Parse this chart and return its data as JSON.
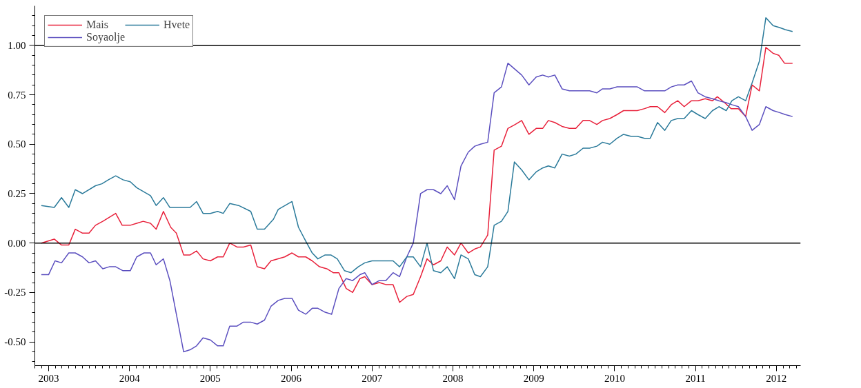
{
  "chart_data": {
    "type": "line",
    "xlim": [
      2002.83,
      2012.3
    ],
    "ylim": [
      -0.62,
      1.2
    ],
    "xticks": [
      2003,
      2004,
      2005,
      2006,
      2007,
      2008,
      2009,
      2010,
      2011,
      2012
    ],
    "yticks": [
      {
        "value": -0.5,
        "label": "-0.50"
      },
      {
        "value": -0.25,
        "label": "-0.25"
      },
      {
        "value": 0,
        "label": "0.00"
      },
      {
        "value": 0.25,
        "label": "0.25"
      },
      {
        "value": 0.5,
        "label": "0.50"
      },
      {
        "value": 0.75,
        "label": "0.75"
      },
      {
        "value": 1,
        "label": "1.00"
      }
    ],
    "grid": false,
    "legend": "top left",
    "line_style": "solid",
    "marker": "none",
    "ref_lines": [
      {
        "axis": "y",
        "value": 1.0,
        "color": "#000000"
      },
      {
        "axis": "y",
        "value": 0,
        "color": "#000000"
      }
    ],
    "series": [
      {
        "name": "Mais",
        "color": "#e8203a",
        "x": [
          2002.91,
          2003.07,
          2003.16,
          2003.25,
          2003.33,
          2003.42,
          2003.5,
          2003.58,
          2003.67,
          2003.75,
          2003.83,
          2003.91,
          2004.01,
          2004.09,
          2004.17,
          2004.26,
          2004.33,
          2004.42,
          2004.51,
          2004.58,
          2004.67,
          2004.75,
          2004.83,
          2004.91,
          2005.0,
          2005.09,
          2005.16,
          2005.24,
          2005.33,
          2005.41,
          2005.5,
          2005.58,
          2005.67,
          2005.75,
          2005.92,
          2006.01,
          2006.09,
          2006.18,
          2006.26,
          2006.35,
          2006.44,
          2006.52,
          2006.59,
          2006.68,
          2006.76,
          2006.85,
          2006.91,
          2007.0,
          2007.09,
          2007.17,
          2007.26,
          2007.34,
          2007.43,
          2007.51,
          2007.6,
          2007.68,
          2007.76,
          2007.85,
          2007.93,
          2008.02,
          2008.1,
          2008.19,
          2008.27,
          2008.34,
          2008.43,
          2008.51,
          2008.6,
          2008.68,
          2008.77,
          2008.85,
          2008.94,
          2009.03,
          2009.11,
          2009.18,
          2009.26,
          2009.35,
          2009.44,
          2009.52,
          2009.61,
          2009.69,
          2009.78,
          2009.85,
          2009.94,
          2010.03,
          2010.11,
          2010.2,
          2010.28,
          2010.37,
          2010.44,
          2010.53,
          2010.62,
          2010.7,
          2010.78,
          2010.86,
          2010.95,
          2011.03,
          2011.12,
          2011.21,
          2011.27,
          2011.36,
          2011.44,
          2011.53,
          2011.62,
          2011.7,
          2011.79,
          2011.87,
          2011.96,
          2012.03,
          2012.1,
          2012.2
        ],
        "values": [
          0.0,
          0.02,
          -0.01,
          -0.01,
          0.07,
          0.05,
          0.05,
          0.09,
          0.11,
          0.13,
          0.15,
          0.09,
          0.09,
          0.1,
          0.11,
          0.1,
          0.07,
          0.16,
          0.08,
          0.05,
          -0.06,
          -0.06,
          -0.04,
          -0.08,
          -0.09,
          -0.07,
          -0.07,
          0.0,
          -0.02,
          -0.02,
          -0.01,
          -0.12,
          -0.13,
          -0.09,
          -0.07,
          -0.05,
          -0.07,
          -0.07,
          -0.09,
          -0.12,
          -0.13,
          -0.15,
          -0.15,
          -0.23,
          -0.25,
          -0.18,
          -0.17,
          -0.21,
          -0.2,
          -0.21,
          -0.21,
          -0.3,
          -0.27,
          -0.26,
          -0.17,
          -0.08,
          -0.11,
          -0.09,
          -0.02,
          -0.06,
          0.0,
          -0.05,
          -0.03,
          -0.02,
          0.04,
          0.47,
          0.49,
          0.58,
          0.6,
          0.62,
          0.55,
          0.58,
          0.58,
          0.62,
          0.61,
          0.59,
          0.58,
          0.58,
          0.62,
          0.62,
          0.6,
          0.62,
          0.63,
          0.65,
          0.67,
          0.67,
          0.67,
          0.68,
          0.69,
          0.69,
          0.66,
          0.7,
          0.72,
          0.69,
          0.72,
          0.72,
          0.73,
          0.72,
          0.74,
          0.71,
          0.68,
          0.68,
          0.64,
          0.8,
          0.77,
          0.99,
          0.96,
          0.95,
          0.91,
          0.91
        ]
      },
      {
        "name": "Soyaolje",
        "color": "#5b4fbf",
        "x": [
          2002.91,
          2003.0,
          2003.08,
          2003.16,
          2003.25,
          2003.33,
          2003.42,
          2003.5,
          2003.58,
          2003.67,
          2003.75,
          2003.83,
          2003.92,
          2004.01,
          2004.09,
          2004.18,
          2004.26,
          2004.33,
          2004.42,
          2004.5,
          2004.67,
          2004.75,
          2004.83,
          2004.91,
          2005.0,
          2005.09,
          2005.16,
          2005.24,
          2005.33,
          2005.41,
          2005.5,
          2005.58,
          2005.67,
          2005.75,
          2005.84,
          2005.92,
          2006.01,
          2006.09,
          2006.18,
          2006.26,
          2006.33,
          2006.42,
          2006.5,
          2006.59,
          2006.68,
          2006.76,
          2006.85,
          2006.91,
          2007.0,
          2007.09,
          2007.17,
          2007.26,
          2007.34,
          2007.43,
          2007.51,
          2007.6,
          2007.68,
          2007.76,
          2007.85,
          2007.93,
          2008.02,
          2008.1,
          2008.19,
          2008.27,
          2008.34,
          2008.43,
          2008.51,
          2008.6,
          2008.68,
          2008.85,
          2008.94,
          2009.03,
          2009.11,
          2009.18,
          2009.26,
          2009.35,
          2009.44,
          2009.52,
          2009.61,
          2009.69,
          2009.78,
          2009.85,
          2009.94,
          2010.03,
          2010.11,
          2010.2,
          2010.28,
          2010.37,
          2010.44,
          2010.53,
          2010.62,
          2010.7,
          2010.78,
          2010.86,
          2010.95,
          2011.03,
          2011.12,
          2011.21,
          2011.29,
          2011.38,
          2011.45,
          2011.53,
          2011.62,
          2011.7,
          2011.79,
          2011.87,
          2011.96,
          2012.04,
          2012.11,
          2012.2
        ],
        "values": [
          -0.16,
          -0.16,
          -0.09,
          -0.1,
          -0.05,
          -0.05,
          -0.07,
          -0.1,
          -0.09,
          -0.13,
          -0.12,
          -0.12,
          -0.14,
          -0.14,
          -0.07,
          -0.05,
          -0.05,
          -0.11,
          -0.08,
          -0.19,
          -0.55,
          -0.54,
          -0.52,
          -0.48,
          -0.49,
          -0.52,
          -0.52,
          -0.42,
          -0.42,
          -0.4,
          -0.4,
          -0.41,
          -0.39,
          -0.32,
          -0.29,
          -0.28,
          -0.28,
          -0.34,
          -0.36,
          -0.33,
          -0.33,
          -0.35,
          -0.36,
          -0.23,
          -0.18,
          -0.19,
          -0.16,
          -0.15,
          -0.21,
          -0.19,
          -0.19,
          -0.15,
          -0.17,
          -0.07,
          0.0,
          0.25,
          0.27,
          0.27,
          0.25,
          0.29,
          0.22,
          0.39,
          0.46,
          0.49,
          0.5,
          0.51,
          0.76,
          0.79,
          0.91,
          0.85,
          0.8,
          0.84,
          0.85,
          0.84,
          0.85,
          0.78,
          0.77,
          0.77,
          0.77,
          0.77,
          0.76,
          0.78,
          0.78,
          0.79,
          0.79,
          0.79,
          0.79,
          0.77,
          0.77,
          0.77,
          0.77,
          0.79,
          0.8,
          0.8,
          0.82,
          0.76,
          0.74,
          0.73,
          0.72,
          0.71,
          0.7,
          0.69,
          0.64,
          0.57,
          0.6,
          0.69,
          0.67,
          0.66,
          0.65,
          0.64
        ]
      },
      {
        "name": "Hvete",
        "color": "#2a7a9a",
        "x": [
          2002.91,
          2003.07,
          2003.16,
          2003.25,
          2003.33,
          2003.42,
          2003.58,
          2003.66,
          2003.74,
          2003.83,
          2003.92,
          2004.01,
          2004.09,
          2004.26,
          2004.33,
          2004.42,
          2004.5,
          2004.67,
          2004.75,
          2004.83,
          2004.91,
          2005.0,
          2005.09,
          2005.16,
          2005.24,
          2005.35,
          2005.5,
          2005.58,
          2005.67,
          2005.78,
          2005.84,
          2006.01,
          2006.09,
          2006.18,
          2006.26,
          2006.33,
          2006.42,
          2006.49,
          2006.57,
          2006.66,
          2006.74,
          2006.83,
          2006.91,
          2007.0,
          2007.09,
          2007.17,
          2007.26,
          2007.34,
          2007.43,
          2007.51,
          2007.6,
          2007.68,
          2007.76,
          2007.85,
          2007.93,
          2008.02,
          2008.1,
          2008.19,
          2008.27,
          2008.34,
          2008.43,
          2008.51,
          2008.6,
          2008.68,
          2008.76,
          2008.85,
          2008.94,
          2009.03,
          2009.11,
          2009.18,
          2009.26,
          2009.35,
          2009.44,
          2009.52,
          2009.61,
          2009.69,
          2009.78,
          2009.85,
          2009.94,
          2010.03,
          2010.11,
          2010.2,
          2010.28,
          2010.37,
          2010.44,
          2010.53,
          2010.62,
          2010.7,
          2010.78,
          2010.86,
          2010.95,
          2011.03,
          2011.12,
          2011.21,
          2011.29,
          2011.38,
          2011.45,
          2011.53,
          2011.62,
          2011.7,
          2011.79,
          2011.87,
          2011.96,
          2012.04,
          2012.11,
          2012.2
        ],
        "values": [
          0.19,
          0.18,
          0.23,
          0.18,
          0.27,
          0.25,
          0.29,
          0.3,
          0.32,
          0.34,
          0.32,
          0.31,
          0.28,
          0.24,
          0.19,
          0.23,
          0.18,
          0.18,
          0.18,
          0.21,
          0.15,
          0.15,
          0.16,
          0.15,
          0.2,
          0.19,
          0.16,
          0.07,
          0.07,
          0.12,
          0.17,
          0.21,
          0.08,
          0.01,
          -0.05,
          -0.08,
          -0.06,
          -0.06,
          -0.08,
          -0.14,
          -0.15,
          -0.12,
          -0.1,
          -0.09,
          -0.09,
          -0.09,
          -0.09,
          -0.12,
          -0.07,
          -0.07,
          -0.12,
          0.0,
          -0.14,
          -0.15,
          -0.12,
          -0.18,
          -0.06,
          -0.08,
          -0.16,
          -0.17,
          -0.12,
          0.09,
          0.11,
          0.16,
          0.41,
          0.37,
          0.32,
          0.36,
          0.38,
          0.39,
          0.38,
          0.45,
          0.44,
          0.45,
          0.48,
          0.48,
          0.49,
          0.51,
          0.5,
          0.53,
          0.55,
          0.54,
          0.54,
          0.53,
          0.53,
          0.61,
          0.57,
          0.62,
          0.63,
          0.63,
          0.67,
          0.65,
          0.63,
          0.67,
          0.69,
          0.67,
          0.72,
          0.74,
          0.72,
          0.81,
          0.92,
          1.14,
          1.1,
          1.09,
          1.08,
          1.07
        ]
      }
    ]
  }
}
